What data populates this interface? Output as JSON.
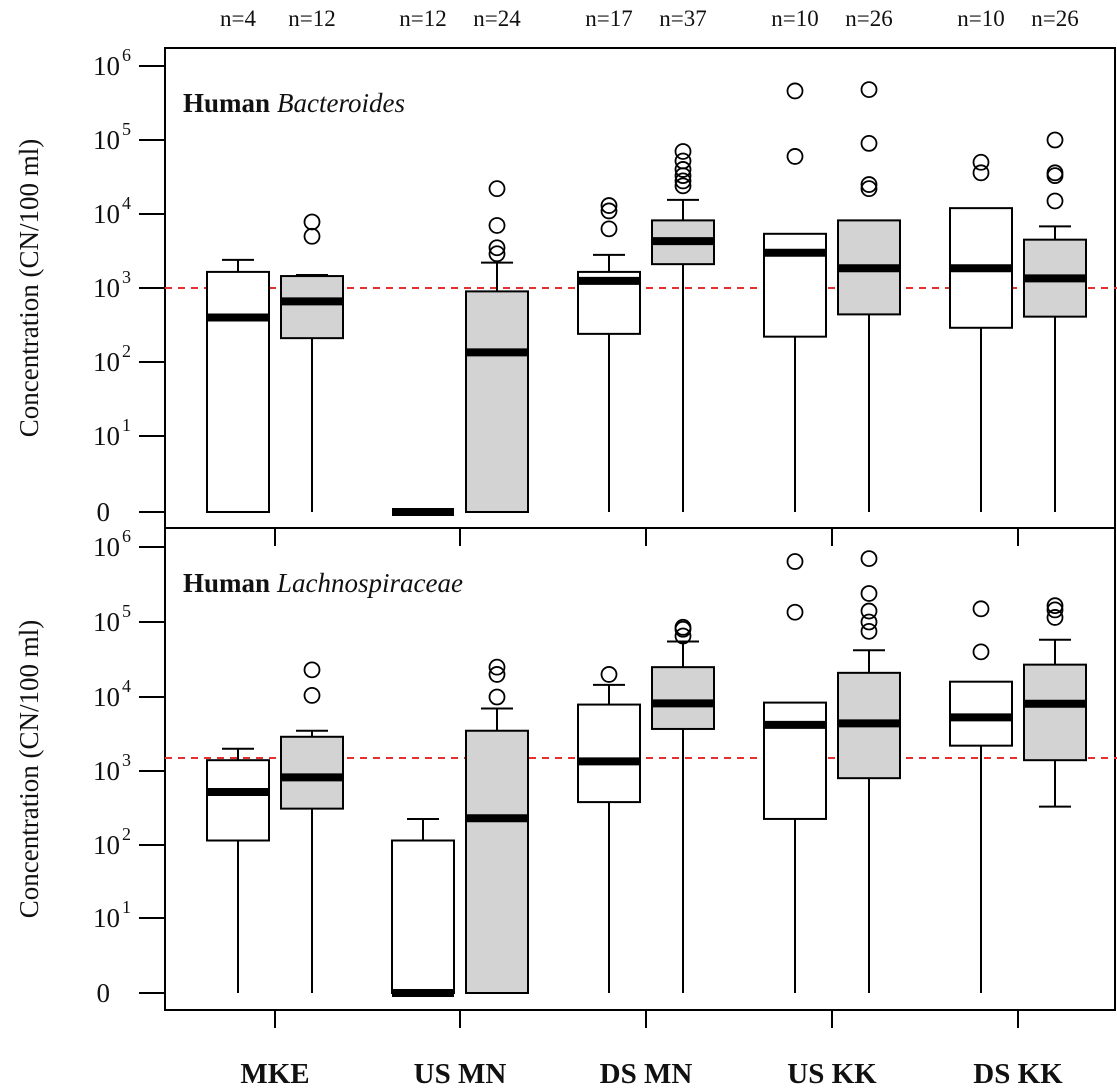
{
  "chart_data": {
    "type": "boxplot",
    "categories": [
      "MKE",
      "US MN",
      "DS MN",
      "US KK",
      "DS KK"
    ],
    "sample_sizes": [
      "n=4",
      "n=12",
      "n=12",
      "n=24",
      "n=17",
      "n=37",
      "n=10",
      "n=26",
      "n=10",
      "n=26"
    ],
    "ylabel": "Concentration (CN/100 ml)",
    "yscale": "log",
    "yticks": [
      "0",
      "10",
      "10",
      "10",
      "10",
      "10",
      "10"
    ],
    "ytick_exponents": [
      "",
      "1",
      "2",
      "3",
      "4",
      "5",
      "6"
    ],
    "ylim": [
      0,
      1000000
    ],
    "colors": {
      "unfilled": "#ffffff",
      "filled": "#d3d3d3",
      "reference": "#e53030",
      "stroke": "#000000"
    },
    "panels": [
      {
        "title_bold": "Human",
        "title_italic": "Bacteroides",
        "reference_line": 1000,
        "boxes": [
          {
            "category": "MKE",
            "fill": "white",
            "low": 0,
            "q1": 0,
            "median": 400,
            "q3": 1650,
            "high": 2400,
            "outliers": []
          },
          {
            "category": "MKE",
            "fill": "gray",
            "low": 0,
            "q1": 210,
            "median": 660,
            "q3": 1450,
            "high": 1500,
            "outliers": [
              5000,
              7800
            ]
          },
          {
            "category": "US MN",
            "fill": "white",
            "low": 0,
            "q1": 0,
            "median": 0,
            "q3": 0,
            "high": 0,
            "outliers": []
          },
          {
            "category": "US MN",
            "fill": "gray",
            "low": 0,
            "q1": 0,
            "median": 135,
            "q3": 900,
            "high": 2200,
            "outliers": [
              2900,
              3500,
              7000,
              22000
            ]
          },
          {
            "category": "DS MN",
            "fill": "white",
            "low": 0,
            "q1": 240,
            "median": 1250,
            "q3": 1650,
            "high": 2800,
            "outliers": [
              6300,
              11000,
              13000
            ]
          },
          {
            "category": "DS MN",
            "fill": "gray",
            "low": 0,
            "q1": 2100,
            "median": 4300,
            "q3": 8200,
            "high": 15500,
            "outliers": [
              24000,
              28000,
              33000,
              40000,
              52000,
              70000
            ]
          },
          {
            "category": "US KK",
            "fill": "white",
            "low": 0,
            "q1": 220,
            "median": 3000,
            "q3": 5400,
            "high": 5400,
            "outliers": [
              60000,
              460000
            ]
          },
          {
            "category": "US KK",
            "fill": "gray",
            "low": 0,
            "q1": 440,
            "median": 1850,
            "q3": 8200,
            "high": 8200,
            "outliers": [
              22000,
              25000,
              90000,
              480000
            ]
          },
          {
            "category": "DS KK",
            "fill": "white",
            "low": 0,
            "q1": 290,
            "median": 1850,
            "q3": 12000,
            "high": 12000,
            "outliers": [
              36000,
              50000
            ]
          },
          {
            "category": "DS KK",
            "fill": "gray",
            "low": 0,
            "q1": 410,
            "median": 1350,
            "q3": 4500,
            "high": 6800,
            "outliers": [
              15000,
              33000,
              36000,
              100000
            ]
          }
        ]
      },
      {
        "title_bold": "Human",
        "title_italic": "Lachnospiraceae",
        "reference_line": 1500,
        "boxes": [
          {
            "category": "MKE",
            "fill": "white",
            "low": 0,
            "q1": 115,
            "median": 520,
            "q3": 1400,
            "high": 2000,
            "outliers": []
          },
          {
            "category": "MKE",
            "fill": "gray",
            "low": 0,
            "q1": 310,
            "median": 820,
            "q3": 2900,
            "high": 3500,
            "outliers": [
              10500,
              23000
            ]
          },
          {
            "category": "US MN",
            "fill": "white",
            "low": 0,
            "q1": 0,
            "median": 0,
            "q3": 115,
            "high": 225,
            "outliers": []
          },
          {
            "category": "US MN",
            "fill": "gray",
            "low": 0,
            "q1": 0,
            "median": 230,
            "q3": 3500,
            "high": 7000,
            "outliers": [
              10000,
              20000,
              25000
            ]
          },
          {
            "category": "DS MN",
            "fill": "white",
            "low": 0,
            "q1": 380,
            "median": 1350,
            "q3": 7900,
            "high": 14500,
            "outliers": [
              20000
            ]
          },
          {
            "category": "DS MN",
            "fill": "gray",
            "low": 0,
            "q1": 3700,
            "median": 8200,
            "q3": 25000,
            "high": 55000,
            "outliers": [
              65000,
              80000,
              85000
            ]
          },
          {
            "category": "US KK",
            "fill": "white",
            "low": 0,
            "q1": 225,
            "median": 4200,
            "q3": 8400,
            "high": 8400,
            "outliers": [
              135000,
              640000
            ]
          },
          {
            "category": "US KK",
            "fill": "gray",
            "low": 0,
            "q1": 800,
            "median": 4400,
            "q3": 21000,
            "high": 42000,
            "outliers": [
              75000,
              100000,
              140000,
              240000,
              700000
            ]
          },
          {
            "category": "DS KK",
            "fill": "white",
            "low": 0,
            "q1": 2200,
            "median": 5300,
            "q3": 16000,
            "high": 16000,
            "outliers": [
              40000,
              150000
            ]
          },
          {
            "category": "DS KK",
            "fill": "gray",
            "low": 330,
            "q1": 1400,
            "median": 8100,
            "q3": 27000,
            "high": 58000,
            "outliers": [
              115000,
              145000,
              165000
            ]
          }
        ]
      }
    ]
  }
}
